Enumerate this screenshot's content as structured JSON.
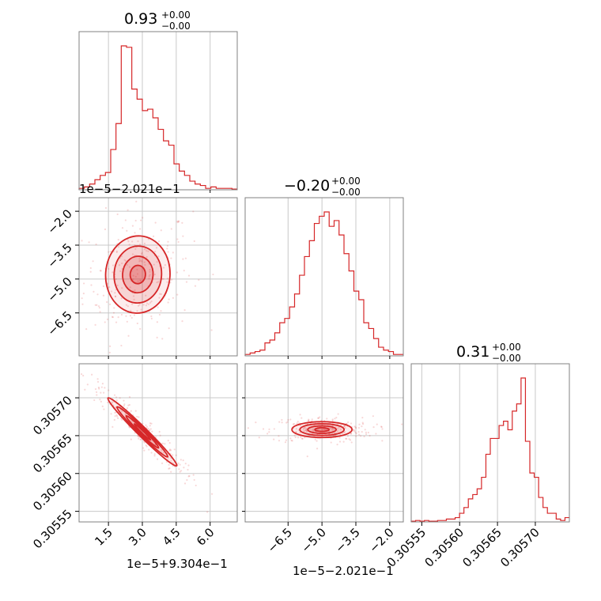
{
  "chart_data": {
    "type": "corner",
    "color": "#d62728",
    "parameters": [
      {
        "title_main": "0.93",
        "title_plus": "+0.00",
        "title_minus": "−0.00",
        "axis_offset": "1e−5+9.304e−1",
        "ticks": [
          1.5,
          3.0,
          4.5,
          6.0
        ],
        "tick_labels": [
          "1.5",
          "3.0",
          "4.5",
          "6.0"
        ],
        "range": [
          0.2,
          7.2
        ],
        "histogram": [
          0.01,
          0.02,
          0.04,
          0.07,
          0.1,
          0.12,
          0.28,
          0.46,
          1.0,
          0.99,
          0.7,
          0.63,
          0.55,
          0.56,
          0.5,
          0.42,
          0.34,
          0.31,
          0.18,
          0.13,
          0.1,
          0.06,
          0.04,
          0.03,
          0.01,
          0.02,
          0.01,
          0.01,
          0.01,
          0.005
        ]
      },
      {
        "title_main": "−0.20",
        "title_plus": "+0.00",
        "title_minus": "−0.00",
        "axis_offset": "1e−5−2.021e−1",
        "ticks": [
          -6.5,
          -5.0,
          -3.5,
          -2.0
        ],
        "tick_labels": [
          "−6.5",
          "−5.0",
          "−3.5",
          "−2.0"
        ],
        "range": [
          -8.4,
          -1.4
        ],
        "histogram": [
          0.01,
          0.02,
          0.03,
          0.04,
          0.09,
          0.11,
          0.16,
          0.23,
          0.26,
          0.34,
          0.43,
          0.56,
          0.69,
          0.8,
          0.92,
          0.97,
          1.0,
          0.9,
          0.94,
          0.84,
          0.71,
          0.59,
          0.45,
          0.39,
          0.23,
          0.19,
          0.12,
          0.06,
          0.04,
          0.03,
          0.01,
          0.01
        ]
      },
      {
        "title_main": "0.31",
        "title_plus": "+0.00",
        "title_minus": "−0.00",
        "axis_offset": "",
        "ticks": [
          0.30555,
          0.3056,
          0.30565,
          0.3057
        ],
        "tick_labels": [
          "0.30555",
          "0.30560",
          "0.30565",
          "0.30570"
        ],
        "range": [
          0.305536,
          0.305745
        ],
        "histogram": [
          0.005,
          0.01,
          0.005,
          0.01,
          0.005,
          0.005,
          0.01,
          0.01,
          0.02,
          0.02,
          0.03,
          0.06,
          0.1,
          0.16,
          0.19,
          0.23,
          0.31,
          0.47,
          0.58,
          0.58,
          0.67,
          0.7,
          0.64,
          0.77,
          0.82,
          1.0,
          0.56,
          0.34,
          0.31,
          0.17,
          0.1,
          0.06,
          0.06,
          0.02,
          0.01,
          0.03
        ]
      }
    ],
    "pairs": [
      {
        "row": 1,
        "col": 0,
        "center": [
          2.8,
          -4.8
        ],
        "sd": [
          0.75,
          0.9
        ],
        "corr": 0.1
      },
      {
        "row": 2,
        "col": 0,
        "center": [
          3.0,
          0.305655
        ],
        "sd": [
          0.8,
          2.36e-05
        ],
        "corr": -0.97
      },
      {
        "row": 2,
        "col": 1,
        "center": [
          -5.0,
          0.305658
        ],
        "sd": [
          0.7,
          5.5e-06
        ],
        "corr": 0.0
      }
    ]
  }
}
